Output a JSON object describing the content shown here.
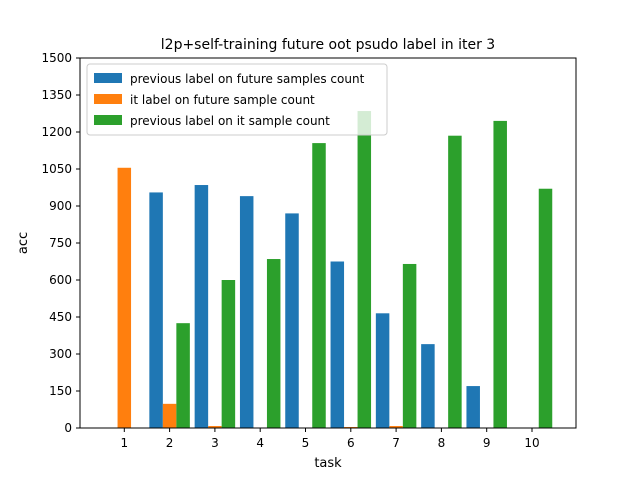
{
  "chart_data": {
    "type": "bar",
    "title": "l2p+self-training future oot psudo label in iter 3",
    "xlabel": "task",
    "ylabel": "acc",
    "ylim": [
      0,
      1500
    ],
    "yticks": [
      0,
      150,
      300,
      450,
      600,
      750,
      900,
      1050,
      1200,
      1350,
      1500
    ],
    "categories": [
      "1",
      "2",
      "3",
      "4",
      "5",
      "6",
      "7",
      "8",
      "9",
      "10"
    ],
    "legend_position": "top-left",
    "grid": false,
    "series": [
      {
        "name": "previous label on future samples count",
        "color": "#1f77b4",
        "values": [
          0,
          955,
          985,
          940,
          870,
          675,
          465,
          340,
          170,
          0
        ]
      },
      {
        "name": "it label on future sample count",
        "color": "#ff7f0e",
        "values": [
          1055,
          98,
          8,
          0,
          0,
          4,
          8,
          0,
          0,
          0
        ]
      },
      {
        "name": "previous label on it sample count",
        "color": "#2ca02c",
        "values": [
          0,
          425,
          600,
          685,
          1155,
          1285,
          665,
          1185,
          1245,
          970
        ]
      }
    ]
  }
}
